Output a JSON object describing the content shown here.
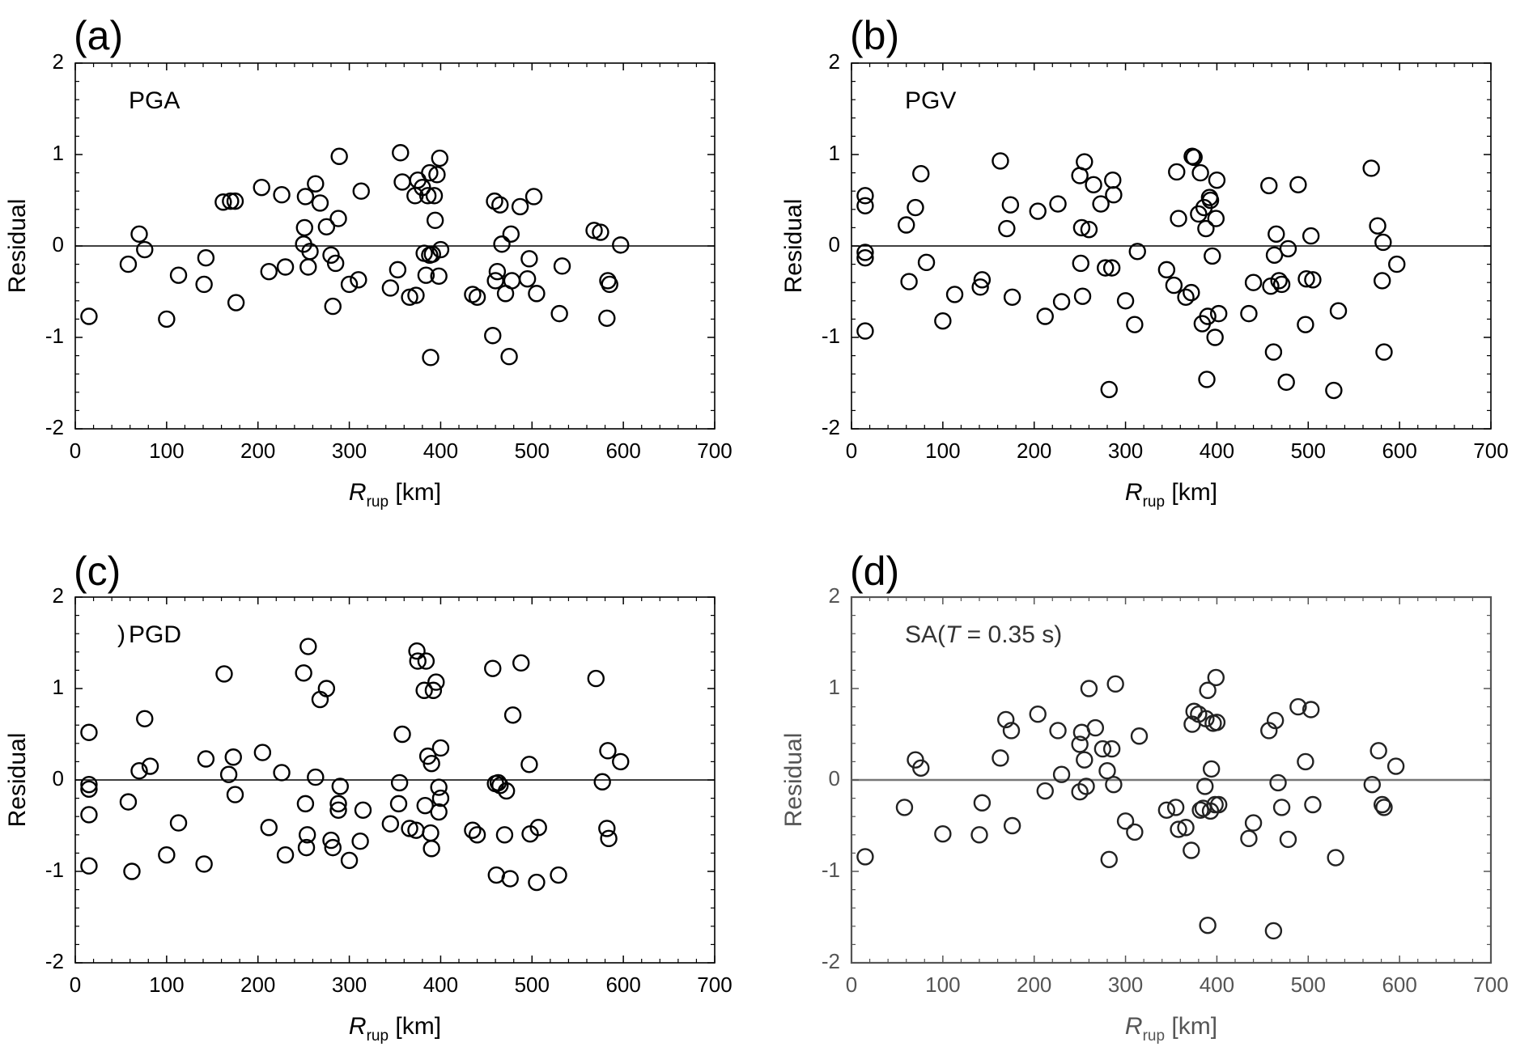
{
  "chart_data": [
    {
      "panel": "(a)",
      "type": "scatter",
      "title": "PGA",
      "xlabel": {
        "main": "R",
        "sub": "rup",
        "unit": " [km]"
      },
      "ylabel": "Residual",
      "xlim": [
        0,
        700
      ],
      "ylim": [
        -2,
        2
      ],
      "xticks": [
        "0",
        "100",
        "200",
        "300",
        "400",
        "500",
        "600",
        "700"
      ],
      "yticks": [
        "2",
        "1",
        "0",
        "-1",
        "-2"
      ],
      "zero_line": true,
      "points": [
        [
          15,
          -0.77
        ],
        [
          58,
          -0.2
        ],
        [
          70,
          0.13
        ],
        [
          76,
          -0.04
        ],
        [
          100,
          -0.8
        ],
        [
          113,
          -0.32
        ],
        [
          141,
          -0.42
        ],
        [
          143,
          -0.13
        ],
        [
          162,
          0.48
        ],
        [
          170,
          0.49
        ],
        [
          175,
          0.49
        ],
        [
          176,
          -0.62
        ],
        [
          204,
          0.64
        ],
        [
          212,
          -0.28
        ],
        [
          226,
          0.56
        ],
        [
          230,
          -0.23
        ],
        [
          250,
          0.02
        ],
        [
          251,
          0.2
        ],
        [
          252,
          0.54
        ],
        [
          255,
          -0.23
        ],
        [
          257,
          -0.06
        ],
        [
          263,
          0.68
        ],
        [
          268,
          0.47
        ],
        [
          275,
          0.21
        ],
        [
          280,
          -0.1
        ],
        [
          282,
          -0.66
        ],
        [
          285,
          -0.19
        ],
        [
          288,
          0.3
        ],
        [
          289,
          0.98
        ],
        [
          300,
          -0.42
        ],
        [
          310,
          -0.37
        ],
        [
          313,
          0.6
        ],
        [
          345,
          -0.46
        ],
        [
          353,
          -0.26
        ],
        [
          356,
          1.02
        ],
        [
          358,
          0.7
        ],
        [
          366,
          -0.56
        ],
        [
          372,
          0.55
        ],
        [
          373,
          -0.54
        ],
        [
          375,
          0.72
        ],
        [
          380,
          0.64
        ],
        [
          382,
          -0.08
        ],
        [
          384,
          -0.32
        ],
        [
          386,
          0.55
        ],
        [
          388,
          -0.1
        ],
        [
          388,
          0.8
        ],
        [
          389,
          -1.22
        ],
        [
          391,
          -0.09
        ],
        [
          393,
          0.55
        ],
        [
          394,
          0.28
        ],
        [
          396,
          0.78
        ],
        [
          398,
          -0.33
        ],
        [
          399,
          0.96
        ],
        [
          400,
          -0.04
        ],
        [
          435,
          -0.53
        ],
        [
          440,
          -0.56
        ],
        [
          457,
          -0.98
        ],
        [
          459,
          0.49
        ],
        [
          460,
          -0.38
        ],
        [
          462,
          -0.28
        ],
        [
          465,
          0.45
        ],
        [
          467,
          0.02
        ],
        [
          471,
          -0.52
        ],
        [
          475,
          -1.21
        ],
        [
          477,
          0.13
        ],
        [
          478,
          -0.38
        ],
        [
          487,
          0.43
        ],
        [
          495,
          -0.36
        ],
        [
          497,
          -0.14
        ],
        [
          502,
          0.54
        ],
        [
          505,
          -0.52
        ],
        [
          530,
          -0.74
        ],
        [
          533,
          -0.22
        ],
        [
          568,
          0.17
        ],
        [
          575,
          0.15
        ],
        [
          582,
          -0.79
        ],
        [
          583,
          -0.38
        ],
        [
          585,
          -0.42
        ],
        [
          597,
          0.01
        ]
      ]
    },
    {
      "panel": "(b)",
      "type": "scatter",
      "title": "PGV",
      "xlabel": {
        "main": "R",
        "sub": "rup",
        "unit": " [km]"
      },
      "ylabel": "Residual",
      "xlim": [
        0,
        700
      ],
      "ylim": [
        -2,
        2
      ],
      "xticks": [
        "0",
        "100",
        "200",
        "300",
        "400",
        "500",
        "600",
        "700"
      ],
      "yticks": [
        "2",
        "1",
        "0",
        "-1",
        "-2"
      ],
      "zero_line": true,
      "points": [
        [
          15,
          0.55
        ],
        [
          15,
          0.44
        ],
        [
          15,
          -0.07
        ],
        [
          15,
          -0.13
        ],
        [
          15,
          -0.93
        ],
        [
          60,
          0.23
        ],
        [
          63,
          -0.39
        ],
        [
          70,
          0.42
        ],
        [
          76,
          0.79
        ],
        [
          82,
          -0.18
        ],
        [
          100,
          -0.82
        ],
        [
          113,
          -0.53
        ],
        [
          141,
          -0.45
        ],
        [
          143,
          -0.37
        ],
        [
          163,
          0.93
        ],
        [
          170,
          0.19
        ],
        [
          174,
          0.45
        ],
        [
          176,
          -0.56
        ],
        [
          204,
          0.38
        ],
        [
          212,
          -0.77
        ],
        [
          226,
          0.46
        ],
        [
          230,
          -0.61
        ],
        [
          250,
          0.77
        ],
        [
          251,
          -0.19
        ],
        [
          252,
          0.2
        ],
        [
          253,
          -0.55
        ],
        [
          255,
          0.92
        ],
        [
          260,
          0.18
        ],
        [
          265,
          0.67
        ],
        [
          273,
          0.46
        ],
        [
          278,
          -0.24
        ],
        [
          282,
          -1.57
        ],
        [
          285,
          -0.24
        ],
        [
          286,
          0.72
        ],
        [
          287,
          0.56
        ],
        [
          300,
          -0.6
        ],
        [
          310,
          -0.86
        ],
        [
          313,
          -0.06
        ],
        [
          345,
          -0.26
        ],
        [
          353,
          -0.43
        ],
        [
          356,
          0.81
        ],
        [
          358,
          0.3
        ],
        [
          366,
          -0.56
        ],
        [
          372,
          -0.51
        ],
        [
          373,
          0.98
        ],
        [
          375,
          0.97
        ],
        [
          380,
          0.35
        ],
        [
          382,
          0.8
        ],
        [
          384,
          -0.85
        ],
        [
          386,
          0.42
        ],
        [
          388,
          0.19
        ],
        [
          389,
          -1.46
        ],
        [
          390,
          -0.77
        ],
        [
          392,
          0.53
        ],
        [
          393,
          0.5
        ],
        [
          395,
          -0.11
        ],
        [
          398,
          -1.0
        ],
        [
          399,
          0.3
        ],
        [
          400,
          0.72
        ],
        [
          402,
          -0.74
        ],
        [
          435,
          -0.74
        ],
        [
          440,
          -0.4
        ],
        [
          457,
          0.66
        ],
        [
          459,
          -0.44
        ],
        [
          462,
          -1.16
        ],
        [
          463,
          -0.1
        ],
        [
          465,
          0.13
        ],
        [
          468,
          -0.38
        ],
        [
          471,
          -0.42
        ],
        [
          476,
          -1.49
        ],
        [
          478,
          -0.03
        ],
        [
          489,
          0.67
        ],
        [
          497,
          -0.86
        ],
        [
          498,
          -0.36
        ],
        [
          503,
          0.11
        ],
        [
          505,
          -0.37
        ],
        [
          528,
          -1.58
        ],
        [
          533,
          -0.71
        ],
        [
          569,
          0.85
        ],
        [
          576,
          0.22
        ],
        [
          581,
          -0.38
        ],
        [
          582,
          0.04
        ],
        [
          583,
          -1.16
        ],
        [
          597,
          -0.2
        ]
      ]
    },
    {
      "panel": "(c)",
      "type": "scatter",
      "title": "PGD",
      "title_prefix": ")",
      "xlabel": {
        "main": "R",
        "sub": "rup",
        "unit": " [km]"
      },
      "ylabel": "Residual",
      "xlim": [
        0,
        700
      ],
      "ylim": [
        -2,
        2
      ],
      "xticks": [
        "0",
        "100",
        "200",
        "300",
        "400",
        "500",
        "600",
        "700"
      ],
      "yticks": [
        "2",
        "1",
        "0",
        "-1",
        "-2"
      ],
      "zero_line": true,
      "points": [
        [
          15,
          0.52
        ],
        [
          15,
          -0.05
        ],
        [
          15,
          -0.1
        ],
        [
          15,
          -0.38
        ],
        [
          15,
          -0.94
        ],
        [
          58,
          -0.24
        ],
        [
          62,
          -1.0
        ],
        [
          70,
          0.1
        ],
        [
          76,
          0.67
        ],
        [
          82,
          0.15
        ],
        [
          100,
          -0.82
        ],
        [
          113,
          -0.47
        ],
        [
          141,
          -0.92
        ],
        [
          143,
          0.23
        ],
        [
          163,
          1.16
        ],
        [
          168,
          0.06
        ],
        [
          173,
          0.25
        ],
        [
          175,
          -0.16
        ],
        [
          205,
          0.3
        ],
        [
          212,
          -0.52
        ],
        [
          226,
          0.08
        ],
        [
          230,
          -0.82
        ],
        [
          250,
          1.17
        ],
        [
          252,
          -0.26
        ],
        [
          253,
          -0.74
        ],
        [
          254,
          -0.6
        ],
        [
          255,
          1.46
        ],
        [
          263,
          0.03
        ],
        [
          268,
          0.88
        ],
        [
          275,
          1.0
        ],
        [
          280,
          -0.66
        ],
        [
          282,
          -0.74
        ],
        [
          288,
          -0.33
        ],
        [
          288,
          -0.26
        ],
        [
          290,
          -0.07
        ],
        [
          300,
          -0.88
        ],
        [
          312,
          -0.67
        ],
        [
          315,
          -0.33
        ],
        [
          345,
          -0.48
        ],
        [
          354,
          -0.26
        ],
        [
          355,
          -0.03
        ],
        [
          358,
          0.5
        ],
        [
          366,
          -0.53
        ],
        [
          373,
          -0.55
        ],
        [
          374,
          1.41
        ],
        [
          375,
          1.3
        ],
        [
          382,
          0.98
        ],
        [
          383,
          -0.28
        ],
        [
          384,
          1.3
        ],
        [
          386,
          0.26
        ],
        [
          389,
          -0.58
        ],
        [
          390,
          -0.75
        ],
        [
          390,
          0.18
        ],
        [
          392,
          0.98
        ],
        [
          395,
          1.07
        ],
        [
          398,
          -0.08
        ],
        [
          398,
          -0.35
        ],
        [
          400,
          -0.2
        ],
        [
          400,
          0.35
        ],
        [
          435,
          -0.55
        ],
        [
          440,
          -0.6
        ],
        [
          457,
          1.22
        ],
        [
          460,
          -0.04
        ],
        [
          461,
          -1.04
        ],
        [
          463,
          -0.03
        ],
        [
          465,
          -0.06
        ],
        [
          470,
          -0.6
        ],
        [
          472,
          -0.12
        ],
        [
          476,
          -1.08
        ],
        [
          479,
          0.71
        ],
        [
          488,
          1.28
        ],
        [
          497,
          0.17
        ],
        [
          498,
          -0.59
        ],
        [
          505,
          -1.12
        ],
        [
          507,
          -0.52
        ],
        [
          529,
          -1.04
        ],
        [
          570,
          1.11
        ],
        [
          577,
          -0.02
        ],
        [
          582,
          -0.53
        ],
        [
          583,
          0.32
        ],
        [
          584,
          -0.64
        ],
        [
          597,
          0.2
        ]
      ]
    },
    {
      "panel": "(d)",
      "type": "scatter",
      "title": "SA(",
      "title_italic": "T",
      "title_suffix": " = 0.35 s)",
      "xlabel": {
        "main": "R",
        "sub": "rup",
        "unit": " [km]"
      },
      "ylabel": "Residual",
      "xlim": [
        0,
        700
      ],
      "ylim": [
        -2,
        2
      ],
      "xticks": [
        "0",
        "100",
        "200",
        "300",
        "400",
        "500",
        "600",
        "700"
      ],
      "yticks": [
        "2",
        "1",
        "0",
        "-1",
        "-2"
      ],
      "zero_line": true,
      "minor_ticks": true,
      "points": [
        [
          15,
          -0.84
        ],
        [
          58,
          -0.3
        ],
        [
          70,
          0.22
        ],
        [
          76,
          0.13
        ],
        [
          100,
          -0.59
        ],
        [
          140,
          -0.6
        ],
        [
          143,
          -0.25
        ],
        [
          163,
          0.24
        ],
        [
          169,
          0.66
        ],
        [
          175,
          0.54
        ],
        [
          176,
          -0.5
        ],
        [
          204,
          0.72
        ],
        [
          212,
          -0.12
        ],
        [
          226,
          0.54
        ],
        [
          230,
          0.06
        ],
        [
          250,
          -0.13
        ],
        [
          250,
          0.39
        ],
        [
          252,
          0.52
        ],
        [
          255,
          0.22
        ],
        [
          257,
          -0.07
        ],
        [
          260,
          1.0
        ],
        [
          267,
          0.57
        ],
        [
          275,
          0.34
        ],
        [
          280,
          0.1
        ],
        [
          282,
          -0.87
        ],
        [
          285,
          0.34
        ],
        [
          287,
          -0.05
        ],
        [
          289,
          1.05
        ],
        [
          300,
          -0.45
        ],
        [
          310,
          -0.57
        ],
        [
          315,
          0.48
        ],
        [
          345,
          -0.33
        ],
        [
          355,
          -0.3
        ],
        [
          358,
          -0.54
        ],
        [
          366,
          -0.52
        ],
        [
          372,
          -0.77
        ],
        [
          373,
          0.61
        ],
        [
          375,
          0.75
        ],
        [
          380,
          0.72
        ],
        [
          382,
          -0.33
        ],
        [
          385,
          -0.31
        ],
        [
          387,
          -0.07
        ],
        [
          388,
          0.67
        ],
        [
          390,
          0.98
        ],
        [
          390,
          -1.59
        ],
        [
          393,
          -0.34
        ],
        [
          394,
          0.12
        ],
        [
          396,
          0.62
        ],
        [
          398,
          -0.27
        ],
        [
          399,
          1.12
        ],
        [
          400,
          0.63
        ],
        [
          402,
          -0.27
        ],
        [
          435,
          -0.64
        ],
        [
          440,
          -0.47
        ],
        [
          457,
          0.54
        ],
        [
          462,
          -1.65
        ],
        [
          464,
          0.65
        ],
        [
          467,
          -0.03
        ],
        [
          471,
          -0.3
        ],
        [
          478,
          -0.65
        ],
        [
          489,
          0.8
        ],
        [
          497,
          0.2
        ],
        [
          503,
          0.77
        ],
        [
          505,
          -0.27
        ],
        [
          530,
          -0.85
        ],
        [
          570,
          -0.05
        ],
        [
          577,
          0.32
        ],
        [
          581,
          -0.27
        ],
        [
          583,
          -0.3
        ],
        [
          596,
          0.15
        ]
      ]
    }
  ]
}
